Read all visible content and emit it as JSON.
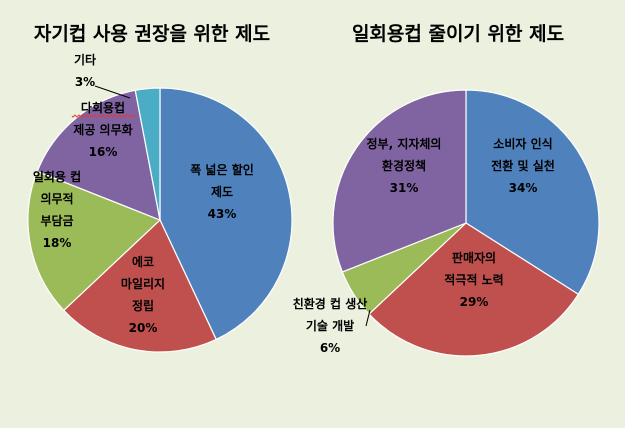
{
  "chart_data": [
    {
      "type": "pie",
      "title": "자기컵 사용 권장을 위한 제도",
      "slices": [
        {
          "label_lines": [
            "폭 넓은 할인",
            "제도"
          ],
          "pct_text": "43%",
          "value": 43,
          "color": "#4f81bd"
        },
        {
          "label_lines": [
            "에코",
            "마일리지",
            "정립"
          ],
          "pct_text": "20%",
          "value": 20,
          "color": "#c0504d"
        },
        {
          "label_lines": [
            "일회용 컵",
            "의무적",
            "부담금"
          ],
          "pct_text": "18%",
          "value": 18,
          "color": "#9bbb59"
        },
        {
          "label_lines": [
            "다회용컵",
            "제공 의무화"
          ],
          "pct_text": "16%",
          "value": 16,
          "color": "#8064a2"
        },
        {
          "label_lines": [
            "기타"
          ],
          "pct_text": "3%",
          "value": 3,
          "color": "#4bacc6"
        }
      ]
    },
    {
      "type": "pie",
      "title": "일회용컵 줄이기 위한 제도",
      "slices": [
        {
          "label_lines": [
            "소비자 인식",
            "전환 및 실천"
          ],
          "pct_text": "34%",
          "value": 34,
          "color": "#4f81bd"
        },
        {
          "label_lines": [
            "판매자의",
            "적극적 노력"
          ],
          "pct_text": "29%",
          "value": 29,
          "color": "#c0504d"
        },
        {
          "label_lines": [
            "친환경 컵 생산",
            "기술 개발"
          ],
          "pct_text": "6%",
          "value": 6,
          "color": "#9bbb59"
        },
        {
          "label_lines": [
            "정부, 지자체의",
            "환경정책"
          ],
          "pct_text": "31%",
          "value": 31,
          "color": "#8064a2"
        }
      ]
    }
  ]
}
